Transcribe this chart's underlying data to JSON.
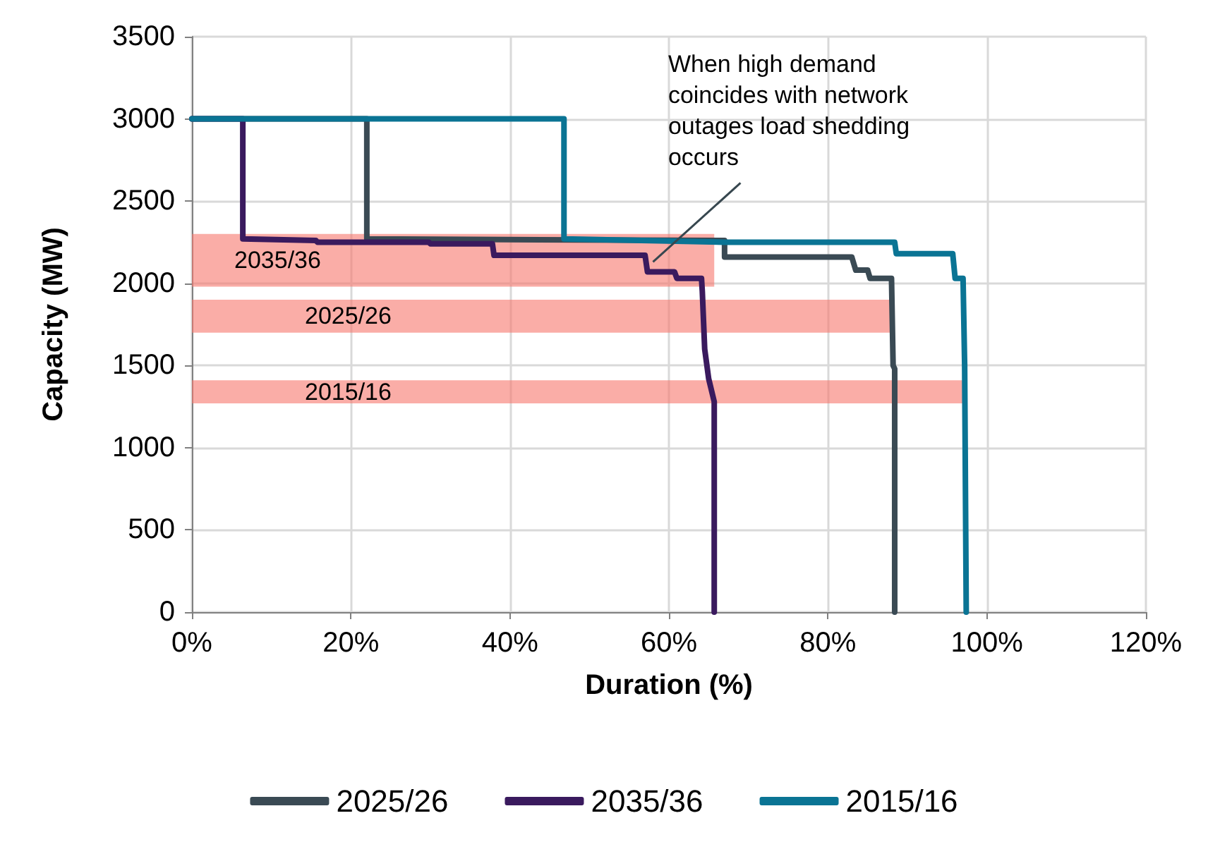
{
  "chart_data": {
    "type": "line",
    "xlabel": "Duration (%)",
    "ylabel": "Capacity (MW)",
    "xlim": [
      0,
      120
    ],
    "xticks": [
      {
        "value": 0,
        "label": "0%"
      },
      {
        "value": 20,
        "label": "20%"
      },
      {
        "value": 40,
        "label": "40%"
      },
      {
        "value": 60,
        "label": "60%"
      },
      {
        "value": 80,
        "label": "80%"
      },
      {
        "value": 100,
        "label": "100%"
      },
      {
        "value": 120,
        "label": "120%"
      }
    ],
    "ylim": [
      0,
      3500
    ],
    "yticks": [
      0,
      500,
      1000,
      1500,
      2000,
      2500,
      3000,
      3500
    ],
    "grid": true,
    "legend": "bottom",
    "marker": "none",
    "line_style": "solid",
    "series": [
      {
        "name": "2025/26",
        "color": "#3a4a54",
        "x": [
          0,
          22,
          22,
          67,
          67,
          83,
          83.5,
          85,
          85.3,
          88,
          88.2,
          88.4,
          88.4
        ],
        "values": [
          3000,
          3000,
          2270,
          2260,
          2160,
          2160,
          2080,
          2080,
          2030,
          2030,
          1500,
          1480,
          0
        ]
      },
      {
        "name": "2035/36",
        "color": "#3a1a5e",
        "x": [
          0,
          6.4,
          6.4,
          15.6,
          15.8,
          29.8,
          30,
          37.8,
          38,
          57,
          57.3,
          60.7,
          61,
          64.1,
          64.2,
          64.5,
          65,
          65.7,
          65.7
        ],
        "values": [
          3000,
          3000,
          2270,
          2260,
          2250,
          2250,
          2240,
          2240,
          2170,
          2170,
          2070,
          2070,
          2030,
          2030,
          1950,
          1600,
          1420,
          1280,
          0
        ]
      },
      {
        "name": "2015/16",
        "color": "#0a7494",
        "x": [
          0,
          46.8,
          46.8,
          67,
          67.3,
          88.4,
          88.6,
          95.7,
          96,
          97,
          97.2,
          97.4
        ],
        "values": [
          3000,
          3000,
          2270,
          2250,
          2250,
          2250,
          2180,
          2180,
          2030,
          2030,
          1500,
          0
        ]
      }
    ],
    "bands": [
      {
        "axis": "y",
        "from": 1700,
        "to": 1900,
        "label": "2025/26",
        "color": "#f7766c"
      },
      {
        "axis": "y",
        "from": 1980,
        "to": 2300,
        "label": "2035/36",
        "color": "#f7766c"
      },
      {
        "axis": "y",
        "from": 1270,
        "to": 1410,
        "label": "2015/16",
        "color": "#f7766c"
      }
    ],
    "annotations": [
      {
        "text": "When high demand coincides with network outages load shedding occurs",
        "x": 58,
        "y": 2130
      }
    ]
  }
}
